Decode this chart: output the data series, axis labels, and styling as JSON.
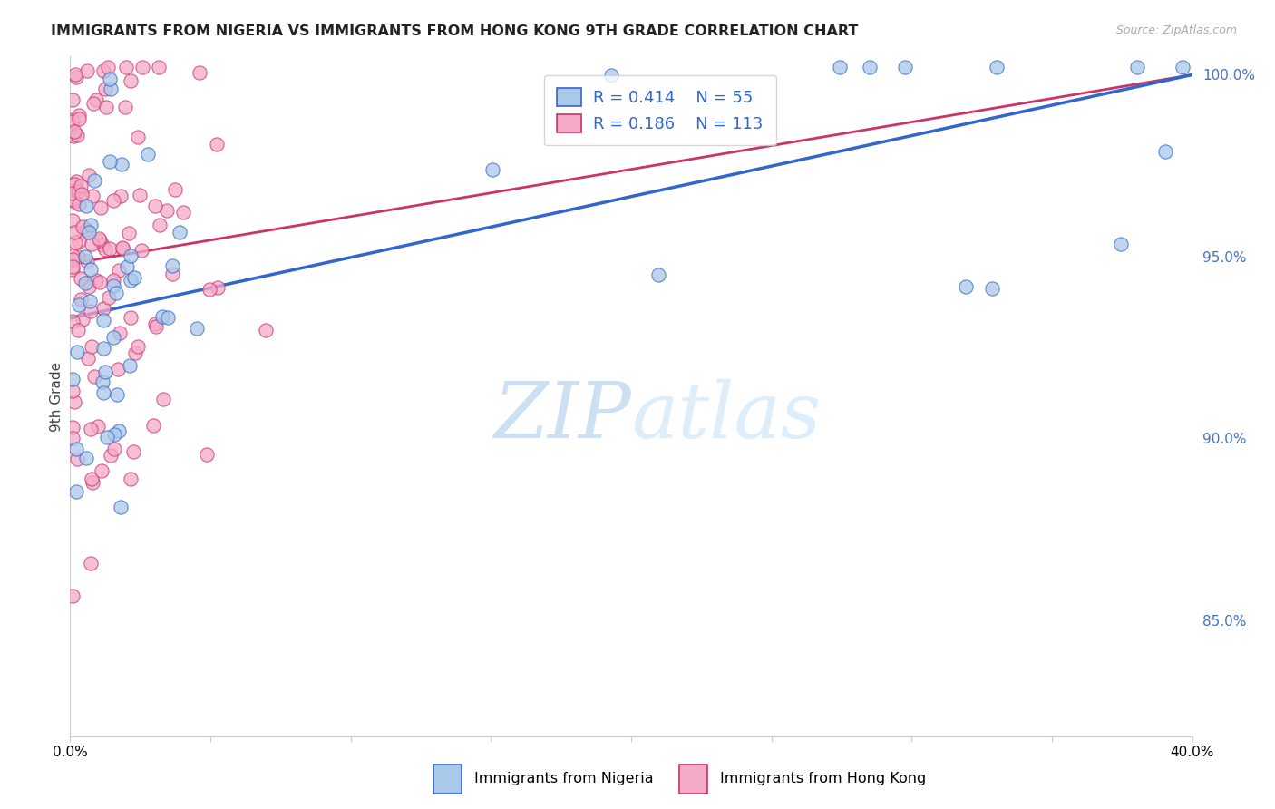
{
  "title": "IMMIGRANTS FROM NIGERIA VS IMMIGRANTS FROM HONG KONG 9TH GRADE CORRELATION CHART",
  "source": "Source: ZipAtlas.com",
  "ylabel": "9th Grade",
  "xmin": 0.0,
  "xmax": 0.4,
  "ymin": 0.818,
  "ymax": 1.005,
  "yticks": [
    0.85,
    0.9,
    0.95,
    1.0
  ],
  "ytick_labels": [
    "85.0%",
    "90.0%",
    "95.0%",
    "100.0%"
  ],
  "xticks": [
    0.0,
    0.05,
    0.1,
    0.15,
    0.2,
    0.25,
    0.3,
    0.35,
    0.4
  ],
  "legend_blue_R": "0.414",
  "legend_blue_N": "55",
  "legend_pink_R": "0.186",
  "legend_pink_N": "113",
  "blue_label": "Immigrants from Nigeria",
  "pink_label": "Immigrants from Hong Kong",
  "blue_fill": "#aac8e8",
  "blue_edge": "#3366cc",
  "pink_fill": "#f5aac8",
  "pink_edge": "#cc3366",
  "blue_line": "#3366cc",
  "pink_line": "#cc3366",
  "grid_color": "#cccccc",
  "title_color": "#222222",
  "source_color": "#aaaaaa",
  "watermark_color": "#daeaf7"
}
